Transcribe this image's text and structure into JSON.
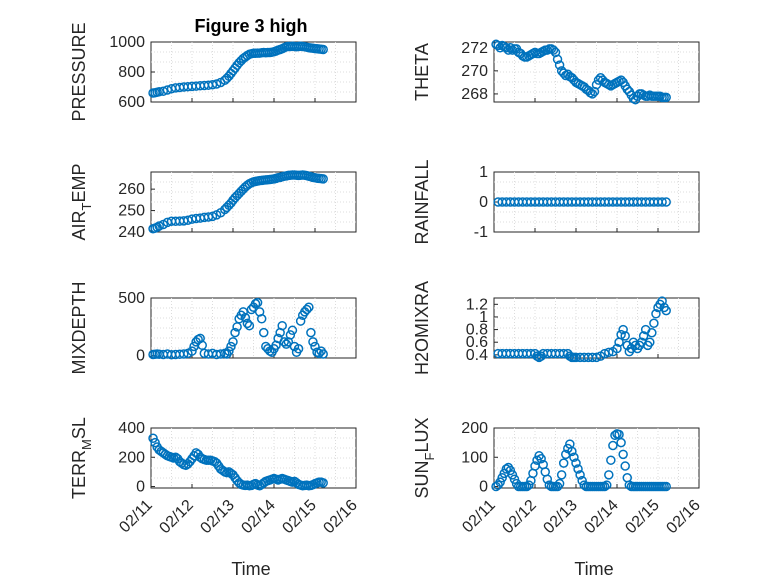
{
  "figure": {
    "title": "Figure 3 high",
    "x_label": "Time",
    "marker_color": "#0072BD"
  },
  "chart_data": [
    {
      "type": "scatter",
      "ylabel_main": "PRESSURE",
      "ylabel_sub": "",
      "ylabel_tail": "",
      "ylim": [
        600,
        1000
      ],
      "yticks": [
        600,
        800,
        1000
      ],
      "xlim": [
        0,
        5
      ],
      "xticks": [],
      "x": [
        0.05,
        0.1,
        0.15,
        0.2,
        0.3,
        0.4,
        0.5,
        0.6,
        0.7,
        0.8,
        0.9,
        1.0,
        1.1,
        1.2,
        1.3,
        1.4,
        1.5,
        1.6,
        1.7,
        1.8,
        1.85,
        1.9,
        1.95,
        2.0,
        2.05,
        2.1,
        2.15,
        2.2,
        2.25,
        2.3,
        2.35,
        2.4,
        2.45,
        2.5,
        2.55,
        2.6,
        2.65,
        2.7,
        2.75,
        2.8,
        2.85,
        2.9,
        2.95,
        3.0,
        3.05,
        3.1,
        3.15,
        3.2,
        3.25,
        3.3,
        3.35,
        3.4,
        3.45,
        3.5,
        3.55,
        3.6,
        3.65,
        3.7,
        3.75,
        3.8,
        3.85,
        3.9,
        3.95,
        4.0,
        4.05,
        4.1,
        4.15,
        4.2
      ],
      "y": [
        660,
        662,
        665,
        668,
        672,
        680,
        688,
        694,
        697,
        700,
        702,
        704,
        706,
        708,
        710,
        712,
        715,
        720,
        730,
        745,
        758,
        772,
        790,
        808,
        826,
        845,
        862,
        876,
        890,
        900,
        910,
        918,
        922,
        925,
        925,
        926,
        926,
        928,
        930,
        928,
        930,
        930,
        932,
        935,
        940,
        946,
        950,
        955,
        962,
        968,
        970,
        970,
        972,
        970,
        968,
        970,
        972,
        970,
        968,
        965,
        962,
        960,
        958,
        956,
        955,
        953,
        952,
        950
      ]
    },
    {
      "type": "scatter",
      "ylabel_main": "THETA",
      "ylabel_sub": "",
      "ylabel_tail": "",
      "ylim": [
        267.3,
        272.5
      ],
      "yticks": [
        268,
        270,
        272
      ],
      "xlim": [
        0,
        5
      ],
      "xticks": [],
      "x": [
        0.05,
        0.1,
        0.15,
        0.2,
        0.25,
        0.3,
        0.35,
        0.4,
        0.45,
        0.5,
        0.55,
        0.6,
        0.65,
        0.7,
        0.75,
        0.8,
        0.85,
        0.9,
        0.95,
        1.0,
        1.05,
        1.1,
        1.15,
        1.2,
        1.25,
        1.3,
        1.35,
        1.4,
        1.45,
        1.5,
        1.55,
        1.6,
        1.65,
        1.7,
        1.75,
        1.8,
        1.85,
        1.9,
        1.95,
        2.0,
        2.05,
        2.1,
        2.15,
        2.2,
        2.25,
        2.3,
        2.35,
        2.4,
        2.45,
        2.5,
        2.55,
        2.6,
        2.65,
        2.7,
        2.75,
        2.8,
        2.85,
        2.9,
        2.95,
        3.0,
        3.05,
        3.1,
        3.15,
        3.2,
        3.25,
        3.3,
        3.35,
        3.4,
        3.45,
        3.5,
        3.55,
        3.6,
        3.65,
        3.7,
        3.75,
        3.8,
        3.85,
        3.9,
        3.95,
        4.0,
        4.05,
        4.1,
        4.15,
        4.2
      ],
      "y": [
        272.3,
        272.2,
        272.0,
        272.2,
        272.1,
        272.0,
        271.8,
        272.0,
        271.8,
        271.9,
        271.9,
        271.6,
        271.5,
        271.3,
        271.2,
        271.2,
        271.3,
        271.4,
        271.5,
        271.6,
        271.5,
        271.5,
        271.6,
        271.7,
        271.8,
        271.8,
        271.9,
        271.9,
        271.8,
        271.6,
        271.0,
        270.5,
        270.0,
        269.8,
        269.6,
        269.7,
        269.5,
        269.4,
        269.2,
        269.0,
        268.9,
        268.8,
        268.7,
        268.6,
        268.4,
        268.3,
        268.1,
        268.0,
        268.2,
        268.8,
        269.2,
        269.4,
        269.2,
        269.0,
        268.9,
        268.8,
        268.7,
        268.8,
        268.9,
        269.0,
        269.1,
        269.2,
        269.0,
        268.7,
        268.4,
        268.2,
        267.9,
        267.6,
        267.5,
        267.8,
        268.0,
        268.0,
        267.9,
        267.8,
        267.8,
        267.9,
        267.8,
        267.8,
        267.8,
        267.8,
        267.8,
        267.7,
        267.7,
        267.7
      ]
    },
    {
      "type": "scatter",
      "ylabel_main": "AIR",
      "ylabel_sub": "T",
      "ylabel_tail": "EMP",
      "ylim": [
        240,
        268
      ],
      "yticks": [
        240,
        250,
        260
      ],
      "xlim": [
        0,
        5
      ],
      "xticks": [],
      "x": [
        0.05,
        0.1,
        0.15,
        0.2,
        0.3,
        0.4,
        0.5,
        0.6,
        0.7,
        0.8,
        0.9,
        1.0,
        1.1,
        1.2,
        1.3,
        1.4,
        1.5,
        1.6,
        1.7,
        1.8,
        1.85,
        1.9,
        1.95,
        2.0,
        2.05,
        2.1,
        2.15,
        2.2,
        2.25,
        2.3,
        2.35,
        2.4,
        2.45,
        2.5,
        2.55,
        2.6,
        2.65,
        2.7,
        2.75,
        2.8,
        2.85,
        2.9,
        2.95,
        3.0,
        3.05,
        3.1,
        3.15,
        3.2,
        3.25,
        3.3,
        3.35,
        3.4,
        3.45,
        3.5,
        3.55,
        3.6,
        3.65,
        3.7,
        3.75,
        3.8,
        3.85,
        3.9,
        3.95,
        4.0,
        4.05,
        4.1,
        4.15,
        4.2
      ],
      "y": [
        241.5,
        241.8,
        242.2,
        242.8,
        243.5,
        244.5,
        245.0,
        245.0,
        245.1,
        245.2,
        245.5,
        246.0,
        246.3,
        246.5,
        246.8,
        247.0,
        247.3,
        248.0,
        249.0,
        250.5,
        251.5,
        252.5,
        253.5,
        254.8,
        256.0,
        257.0,
        258.0,
        259.0,
        260.0,
        261.0,
        261.8,
        262.5,
        263.0,
        263.4,
        263.6,
        263.8,
        264.0,
        264.1,
        264.2,
        264.3,
        264.4,
        264.5,
        264.6,
        264.8,
        265.0,
        265.3,
        265.5,
        265.8,
        266.0,
        266.2,
        266.4,
        266.5,
        266.6,
        266.6,
        266.5,
        266.4,
        266.5,
        266.6,
        266.5,
        266.3,
        266.0,
        265.8,
        265.5,
        265.3,
        265.1,
        265.0,
        264.9,
        264.8
      ]
    },
    {
      "type": "scatter",
      "ylabel_main": "RAINFALL",
      "ylabel_sub": "",
      "ylabel_tail": "",
      "ylim": [
        -1,
        1
      ],
      "yticks": [
        -1,
        0,
        1
      ],
      "xlim": [
        0,
        5
      ],
      "xticks": [],
      "x": [
        0.1,
        0.2,
        0.3,
        0.4,
        0.5,
        0.6,
        0.7,
        0.8,
        0.9,
        1.0,
        1.1,
        1.2,
        1.3,
        1.4,
        1.5,
        1.6,
        1.7,
        1.8,
        1.9,
        2.0,
        2.1,
        2.2,
        2.3,
        2.4,
        2.5,
        2.6,
        2.7,
        2.8,
        2.9,
        3.0,
        3.1,
        3.2,
        3.3,
        3.4,
        3.5,
        3.6,
        3.7,
        3.8,
        3.9,
        4.0,
        4.1,
        4.2
      ],
      "y": [
        0,
        0,
        0,
        0,
        0,
        0,
        0,
        0,
        0,
        0,
        0,
        0,
        0,
        0,
        0,
        0,
        0,
        0,
        0,
        0,
        0,
        0,
        0,
        0,
        0,
        0,
        0,
        0,
        0,
        0,
        0,
        0,
        0,
        0,
        0,
        0,
        0,
        0,
        0,
        0,
        0,
        0
      ]
    },
    {
      "type": "scatter",
      "ylabel_main": "MIXDEPTH",
      "ylabel_sub": "",
      "ylabel_tail": "",
      "ylim": [
        -20,
        500
      ],
      "yticks": [
        0,
        500
      ],
      "xlim": [
        0,
        5
      ],
      "xticks": [],
      "x": [
        0.05,
        0.1,
        0.15,
        0.2,
        0.3,
        0.4,
        0.5,
        0.6,
        0.7,
        0.8,
        0.9,
        1.0,
        1.05,
        1.1,
        1.15,
        1.2,
        1.25,
        1.3,
        1.4,
        1.5,
        1.6,
        1.7,
        1.8,
        1.85,
        1.9,
        1.95,
        2.0,
        2.05,
        2.1,
        2.15,
        2.2,
        2.25,
        2.3,
        2.35,
        2.4,
        2.45,
        2.5,
        2.55,
        2.6,
        2.65,
        2.7,
        2.75,
        2.8,
        2.85,
        2.9,
        2.95,
        3.0,
        3.05,
        3.1,
        3.15,
        3.2,
        3.25,
        3.3,
        3.35,
        3.4,
        3.45,
        3.5,
        3.55,
        3.6,
        3.65,
        3.7,
        3.75,
        3.8,
        3.85,
        3.9,
        3.95,
        4.0,
        4.05,
        4.1,
        4.15,
        4.2
      ],
      "y": [
        10,
        12,
        15,
        12,
        10,
        15,
        8,
        10,
        12,
        15,
        20,
        40,
        80,
        120,
        140,
        150,
        90,
        20,
        15,
        20,
        10,
        15,
        20,
        15,
        40,
        80,
        120,
        200,
        250,
        320,
        350,
        380,
        330,
        280,
        260,
        400,
        420,
        450,
        460,
        380,
        320,
        200,
        80,
        60,
        40,
        30,
        60,
        90,
        150,
        200,
        260,
        120,
        100,
        120,
        180,
        220,
        80,
        30,
        60,
        300,
        350,
        380,
        400,
        420,
        200,
        120,
        80,
        30,
        20,
        40,
        15
      ]
    },
    {
      "type": "scatter",
      "ylabel_main": "H2OMIXRA",
      "ylabel_sub": "",
      "ylabel_tail": "",
      "ylim": [
        0.35,
        1.3
      ],
      "yticks": [
        0.4,
        0.6,
        0.8,
        1,
        1.2
      ],
      "ytick_labels": [
        "0.4",
        "0.6",
        "0.8",
        "1",
        "1.2"
      ],
      "xlim": [
        0,
        5
      ],
      "xticks": [],
      "x": [
        0.1,
        0.2,
        0.3,
        0.4,
        0.5,
        0.6,
        0.7,
        0.8,
        0.9,
        1.0,
        1.05,
        1.1,
        1.15,
        1.2,
        1.3,
        1.4,
        1.5,
        1.6,
        1.7,
        1.8,
        1.85,
        1.9,
        1.95,
        2.0,
        2.1,
        2.2,
        2.3,
        2.4,
        2.5,
        2.6,
        2.7,
        2.8,
        2.9,
        3.0,
        3.05,
        3.1,
        3.15,
        3.2,
        3.25,
        3.3,
        3.35,
        3.4,
        3.45,
        3.5,
        3.55,
        3.6,
        3.65,
        3.7,
        3.75,
        3.8,
        3.85,
        3.9,
        3.95,
        4.0,
        4.05,
        4.1,
        4.15,
        4.2
      ],
      "y": [
        0.42,
        0.42,
        0.42,
        0.42,
        0.42,
        0.42,
        0.42,
        0.42,
        0.42,
        0.42,
        0.38,
        0.36,
        0.38,
        0.42,
        0.42,
        0.42,
        0.42,
        0.42,
        0.42,
        0.42,
        0.38,
        0.36,
        0.36,
        0.36,
        0.36,
        0.36,
        0.36,
        0.36,
        0.36,
        0.38,
        0.42,
        0.44,
        0.45,
        0.5,
        0.6,
        0.72,
        0.8,
        0.7,
        0.55,
        0.45,
        0.5,
        0.6,
        0.55,
        0.5,
        0.55,
        0.6,
        0.7,
        0.8,
        0.55,
        0.6,
        0.75,
        0.9,
        1.05,
        1.15,
        1.2,
        1.25,
        1.15,
        1.1
      ]
    },
    {
      "type": "scatter",
      "ylabel_main": "TERR",
      "ylabel_sub": "M",
      "ylabel_tail": "SL",
      "ylim": [
        -10,
        400
      ],
      "yticks": [
        0,
        200,
        400
      ],
      "xlim": [
        0,
        5
      ],
      "xticks": [
        "02/11",
        "02/12",
        "02/13",
        "02/14",
        "02/15",
        "02/16"
      ],
      "x": [
        0.05,
        0.1,
        0.15,
        0.2,
        0.25,
        0.3,
        0.35,
        0.4,
        0.45,
        0.5,
        0.55,
        0.6,
        0.65,
        0.7,
        0.75,
        0.8,
        0.85,
        0.9,
        0.95,
        1.0,
        1.05,
        1.1,
        1.15,
        1.2,
        1.25,
        1.3,
        1.35,
        1.4,
        1.45,
        1.5,
        1.55,
        1.6,
        1.65,
        1.7,
        1.75,
        1.8,
        1.85,
        1.9,
        1.95,
        2.0,
        2.05,
        2.1,
        2.15,
        2.2,
        2.25,
        2.3,
        2.35,
        2.4,
        2.45,
        2.5,
        2.55,
        2.6,
        2.65,
        2.7,
        2.75,
        2.8,
        2.85,
        2.9,
        2.95,
        3.0,
        3.05,
        3.1,
        3.15,
        3.2,
        3.25,
        3.3,
        3.35,
        3.4,
        3.45,
        3.5,
        3.55,
        3.6,
        3.65,
        3.7,
        3.75,
        3.8,
        3.85,
        3.9,
        3.95,
        4.0,
        4.05,
        4.1,
        4.15,
        4.2
      ],
      "y": [
        330,
        300,
        270,
        250,
        240,
        230,
        220,
        210,
        205,
        200,
        195,
        200,
        190,
        170,
        160,
        150,
        145,
        155,
        170,
        190,
        210,
        230,
        220,
        200,
        190,
        185,
        180,
        180,
        180,
        175,
        170,
        160,
        140,
        120,
        110,
        100,
        95,
        100,
        90,
        80,
        60,
        40,
        25,
        15,
        10,
        8,
        10,
        5,
        8,
        15,
        20,
        10,
        5,
        15,
        25,
        35,
        40,
        45,
        50,
        55,
        50,
        45,
        50,
        55,
        50,
        45,
        40,
        35,
        30,
        35,
        25,
        15,
        10,
        5,
        8,
        10,
        5,
        8,
        12,
        20,
        25,
        30,
        30,
        25
      ]
    },
    {
      "type": "scatter",
      "ylabel_main": "SUN",
      "ylabel_sub": "F",
      "ylabel_tail": "LUX",
      "ylim": [
        -5,
        200
      ],
      "yticks": [
        0,
        100,
        200
      ],
      "xlim": [
        0,
        5
      ],
      "xticks": [
        "02/11",
        "02/12",
        "02/13",
        "02/14",
        "02/15",
        "02/16"
      ],
      "x": [
        0.05,
        0.1,
        0.15,
        0.2,
        0.25,
        0.3,
        0.35,
        0.4,
        0.45,
        0.5,
        0.55,
        0.6,
        0.65,
        0.7,
        0.75,
        0.8,
        0.85,
        0.9,
        0.95,
        1.0,
        1.05,
        1.1,
        1.15,
        1.2,
        1.25,
        1.3,
        1.35,
        1.4,
        1.45,
        1.5,
        1.55,
        1.6,
        1.65,
        1.7,
        1.75,
        1.8,
        1.85,
        1.9,
        1.95,
        2.0,
        2.05,
        2.1,
        2.15,
        2.2,
        2.25,
        2.3,
        2.35,
        2.4,
        2.45,
        2.5,
        2.55,
        2.6,
        2.65,
        2.7,
        2.75,
        2.8,
        2.85,
        2.9,
        2.95,
        3.0,
        3.05,
        3.1,
        3.15,
        3.2,
        3.25,
        3.3,
        3.35,
        3.4,
        3.45,
        3.5,
        3.55,
        3.6,
        3.65,
        3.7,
        3.75,
        3.8,
        3.85,
        3.9,
        3.95,
        4.0,
        4.05,
        4.1,
        4.15,
        4.2
      ],
      "y": [
        0,
        5,
        15,
        30,
        45,
        60,
        65,
        55,
        40,
        25,
        10,
        0,
        0,
        0,
        0,
        0,
        5,
        20,
        45,
        70,
        90,
        105,
        95,
        75,
        50,
        25,
        5,
        0,
        0,
        0,
        0,
        10,
        40,
        80,
        110,
        130,
        145,
        120,
        100,
        80,
        60,
        40,
        20,
        5,
        0,
        0,
        0,
        0,
        0,
        0,
        0,
        0,
        0,
        0,
        5,
        40,
        90,
        140,
        175,
        180,
        178,
        150,
        110,
        70,
        30,
        5,
        0,
        0,
        0,
        0,
        0,
        0,
        0,
        0,
        0,
        0,
        0,
        0,
        0,
        0,
        0,
        0,
        0,
        0
      ]
    }
  ]
}
